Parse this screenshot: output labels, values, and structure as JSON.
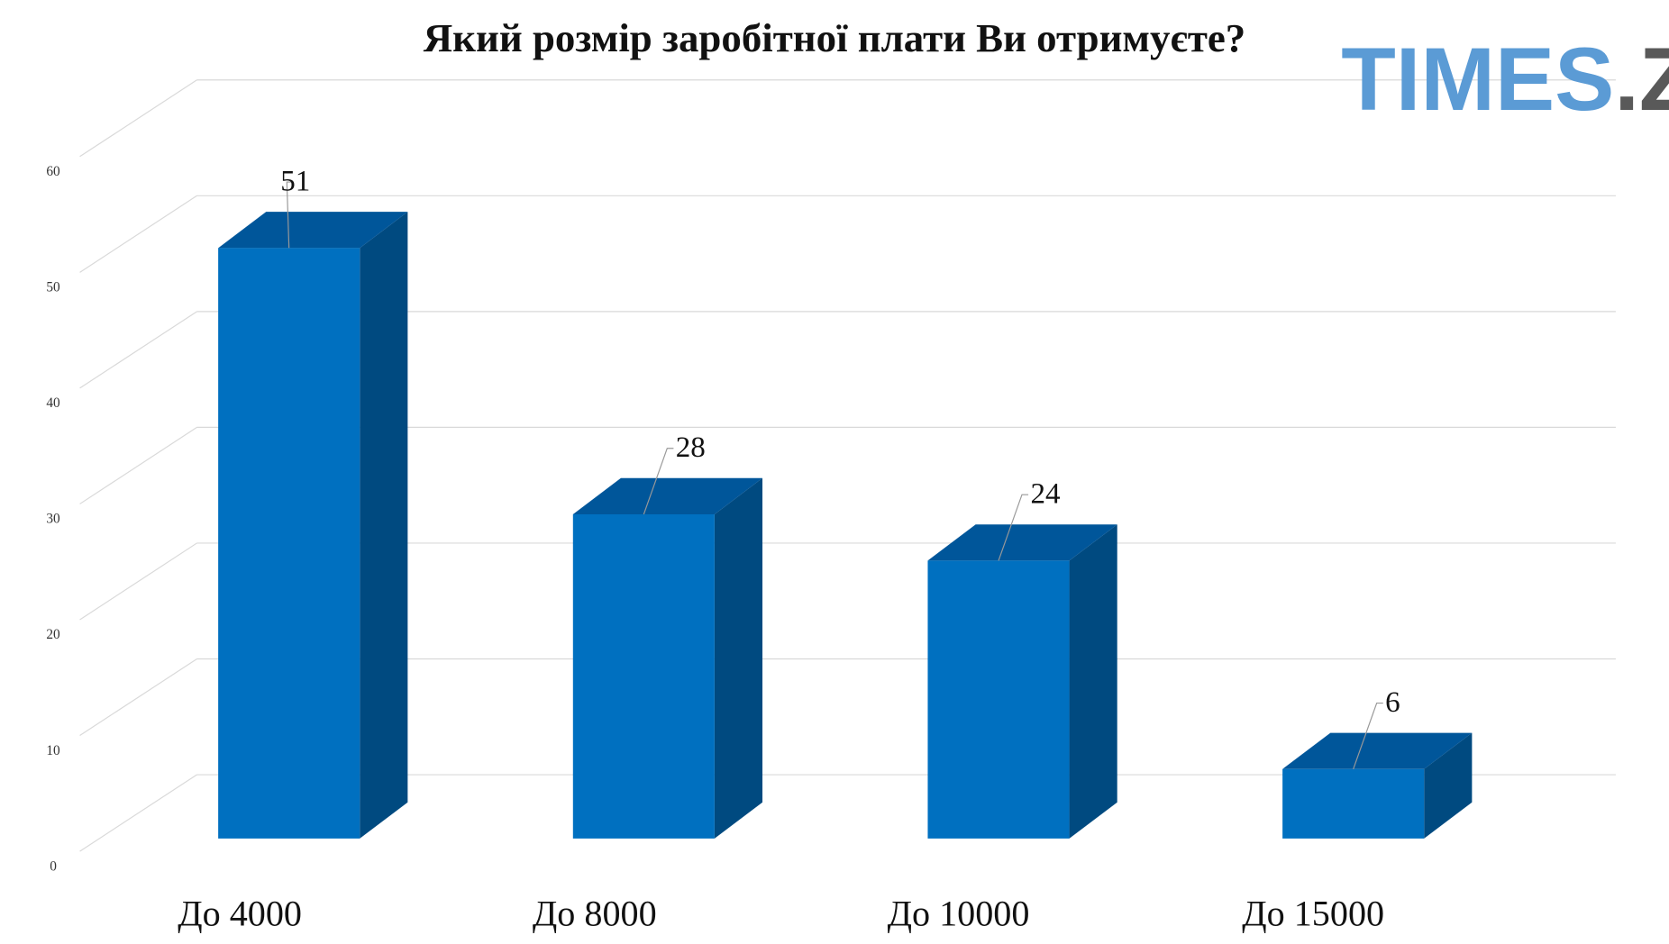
{
  "chart_data": {
    "type": "bar3d",
    "title": "Який розмір заробітної плати Ви отримуєте?",
    "watermark": [
      "TIMES",
      ".ZT"
    ],
    "categories": [
      "До 4000",
      "До 8000",
      "До 10000",
      "До 15000"
    ],
    "values": [
      51,
      28,
      24,
      6
    ],
    "color": "#0070c0",
    "ylim": [
      0,
      60
    ],
    "yticks": [
      0,
      10,
      20,
      30,
      40,
      50,
      60
    ],
    "grid": true
  }
}
